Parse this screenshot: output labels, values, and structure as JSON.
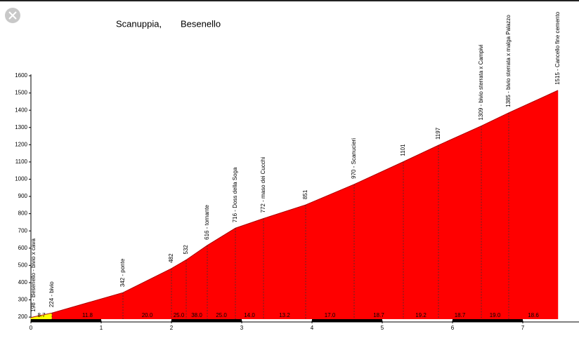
{
  "chart_data": {
    "type": "area",
    "title": "Scanuppia,",
    "subtitle": "Besenello",
    "x": [
      0,
      0.3,
      1.31,
      2.0,
      2.21,
      2.51,
      2.91,
      3.31,
      3.91,
      4.6,
      5.3,
      5.8,
      6.41,
      6.8,
      7.5
    ],
    "values": [
      198,
      224,
      342,
      482,
      532,
      616,
      716,
      772,
      851,
      970,
      1101,
      1197,
      1309,
      1385,
      1515
    ],
    "point_labels": [
      "198 - Besenello - bivio x cava",
      "224 - bivio",
      "342 - ponte",
      "482",
      "532",
      "616 - tornante",
      "716 - Doss della Soga",
      "772 - maso dei Cucchi",
      "851",
      "970 - Scanucieri",
      "1101",
      "1197",
      "1309 - bivio sterrata x Campivi",
      "1385 - bivio sterrata x malga Palazzo",
      "1515 - Cancello fine cemento"
    ],
    "gradients": [
      8.7,
      11.8,
      20,
      25,
      38,
      25,
      14,
      13.2,
      17,
      18.7,
      19.2,
      18.7,
      19,
      18.6
    ],
    "gradient_labels": [
      "8.7",
      "11.8",
      "20.0",
      "25.0",
      "38.0",
      "25.0",
      "14.0",
      "13.2",
      "17.0",
      "18.7",
      "19.2",
      "18.7",
      "19.0",
      "18.6"
    ],
    "segment_colors": [
      "#ffff00",
      "#ff0000",
      "#ff0000",
      "#ff0000",
      "#ff0000",
      "#ff0000",
      "#ff0000",
      "#ff0000",
      "#ff0000",
      "#ff0000",
      "#ff0000",
      "#ff0000",
      "#ff0000",
      "#ff0000"
    ],
    "xlim": [
      0,
      7.8
    ],
    "xticks": [
      0,
      1,
      2,
      3,
      4,
      5,
      6,
      7
    ],
    "ylim": [
      180,
      1600
    ],
    "yticks": [
      200,
      300,
      400,
      500,
      600,
      700,
      800,
      900,
      1000,
      1100,
      1200,
      1300,
      1400,
      1500,
      1600
    ]
  }
}
